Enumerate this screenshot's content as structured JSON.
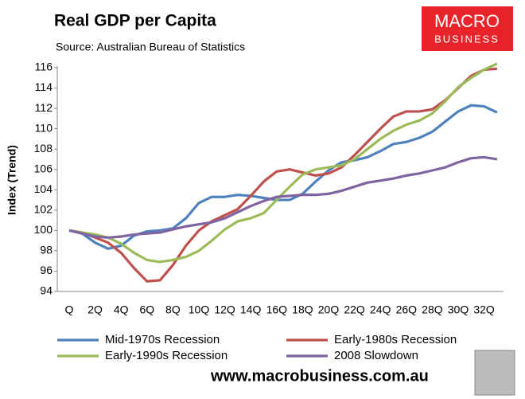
{
  "chart_data": {
    "type": "line",
    "title": "Real GDP per Capita",
    "subtitle": "Source: Australian Bureau of Statistics",
    "logo": [
      "MACRO",
      "BUSINESS"
    ],
    "footer": "www.macrobusiness.com.au",
    "y_label": "Index (Trend)",
    "categories": [
      "Q",
      null,
      "2Q",
      null,
      "4Q",
      null,
      "6Q",
      null,
      "8Q",
      null,
      "10Q",
      null,
      "12Q",
      null,
      "14Q",
      null,
      "16Q",
      null,
      "18Q",
      null,
      "20Q",
      null,
      "22Q",
      null,
      "24Q",
      null,
      "26Q",
      null,
      "28Q",
      null,
      "30Q",
      null,
      "32Q",
      null
    ],
    "ylim": [
      94,
      116
    ],
    "yticks": [
      94,
      96,
      98,
      100,
      102,
      104,
      106,
      108,
      110,
      112,
      114,
      116
    ],
    "grid": false,
    "legend": "bottom",
    "series": [
      {
        "name": "Mid-1970s Recession",
        "color": "#4f81bd",
        "values": [
          100,
          99.7,
          98.8,
          98.2,
          98.5,
          99.5,
          99.9,
          100.0,
          100.2,
          101.2,
          102.7,
          103.3,
          103.3,
          103.5,
          103.4,
          103.2,
          103.0,
          103.0,
          103.6,
          104.8,
          105.9,
          106.7,
          106.9,
          107.2,
          107.8,
          108.5,
          108.7,
          109.1,
          109.7,
          110.7,
          111.7,
          112.3,
          112.2,
          111.6
        ]
      },
      {
        "name": "Early-1980s Recession",
        "color": "#c0504d",
        "values": [
          100,
          99.8,
          99.3,
          98.8,
          97.8,
          96.3,
          95.0,
          95.1,
          96.6,
          98.5,
          100.0,
          100.9,
          101.5,
          102.1,
          103.4,
          104.8,
          105.8,
          106.0,
          105.7,
          105.4,
          105.6,
          106.2,
          107.4,
          108.7,
          110.0,
          111.2,
          111.7,
          111.7,
          111.9,
          112.8,
          114.0,
          115.2,
          115.8,
          115.9
        ]
      },
      {
        "name": "Early-1990s Recession",
        "color": "#9bbb59",
        "values": [
          100,
          99.8,
          99.6,
          99.3,
          98.7,
          97.8,
          97.1,
          96.9,
          97.1,
          97.4,
          98.0,
          99.0,
          100.1,
          100.9,
          101.2,
          101.7,
          103.0,
          104.3,
          105.5,
          106.0,
          106.2,
          106.4,
          107.0,
          108.0,
          109.0,
          109.8,
          110.4,
          110.8,
          111.5,
          112.7,
          114.1,
          115.0,
          115.8,
          116.4
        ]
      },
      {
        "name": "2008 Slowdown",
        "color": "#8064a2",
        "values": [
          100,
          99.7,
          99.4,
          99.3,
          99.4,
          99.6,
          99.7,
          99.8,
          100.1,
          100.4,
          100.6,
          100.8,
          101.2,
          101.8,
          102.4,
          102.9,
          103.3,
          103.4,
          103.5,
          103.5,
          103.6,
          103.9,
          104.3,
          104.7,
          104.9,
          105.1,
          105.4,
          105.6,
          105.9,
          106.2,
          106.7,
          107.1,
          107.2,
          107.0
        ]
      }
    ]
  }
}
